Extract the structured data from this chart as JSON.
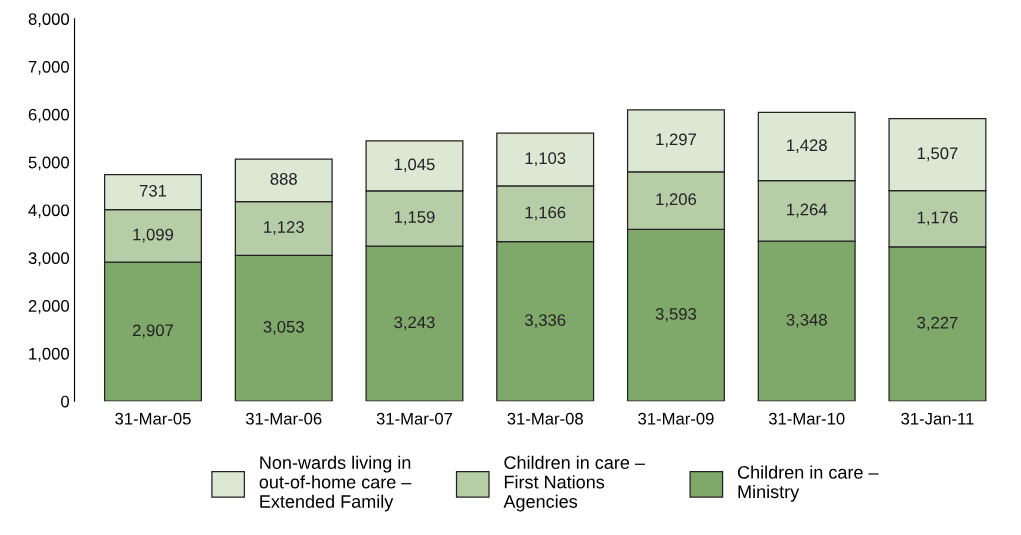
{
  "chart_data": {
    "type": "bar",
    "stacked": true,
    "categories": [
      "31-Mar-05",
      "31-Mar-06",
      "31-Mar-07",
      "31-Mar-08",
      "31-Mar-09",
      "31-Mar-10",
      "31-Jan-11"
    ],
    "series": [
      {
        "name": "Children in care –\nMinistry",
        "color": "#7fa86a",
        "values": [
          2907,
          3053,
          3243,
          3336,
          3593,
          3348,
          3227
        ],
        "value_labels": [
          "2,907",
          "3,053",
          "3,243",
          "3,336",
          "3,593",
          "3,348",
          "3,227"
        ]
      },
      {
        "name": "Children in care –\nFirst Nations\nAgencies",
        "color": "#b6cda8",
        "values": [
          1099,
          1123,
          1159,
          1166,
          1206,
          1264,
          1176
        ],
        "value_labels": [
          "1,099",
          "1,123",
          "1,159",
          "1,166",
          "1,206",
          "1,264",
          "1,176"
        ]
      },
      {
        "name": "Non-wards living in\nout-of-home care –\nExtended Family",
        "color": "#dce8d4",
        "values": [
          731,
          888,
          1045,
          1103,
          1297,
          1428,
          1507
        ],
        "value_labels": [
          "731",
          "888",
          "1,045",
          "1,103",
          "1,297",
          "1,428",
          "1,507"
        ]
      }
    ],
    "ylim": [
      0,
      8000
    ],
    "yticks": [
      {
        "value": 0,
        "label": "0"
      },
      {
        "value": 1000,
        "label": "1,000"
      },
      {
        "value": 2000,
        "label": "2,000"
      },
      {
        "value": 3000,
        "label": "3,000"
      },
      {
        "value": 4000,
        "label": "4,000"
      },
      {
        "value": 5000,
        "label": "5,000"
      },
      {
        "value": 6000,
        "label": "6,000"
      },
      {
        "value": 7000,
        "label": "7,000"
      },
      {
        "value": 8000,
        "label": "8,000"
      }
    ],
    "grid": false,
    "legend": "bottom"
  }
}
